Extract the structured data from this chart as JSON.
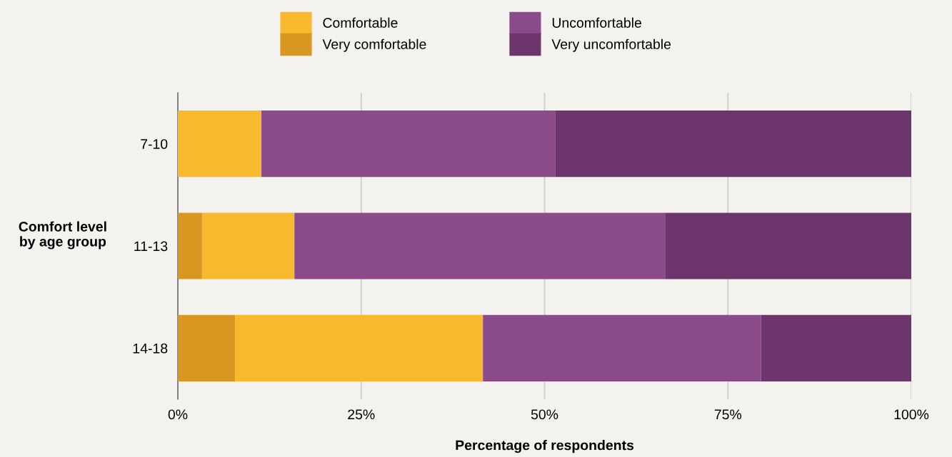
{
  "chart_data": {
    "type": "bar",
    "orientation": "horizontal",
    "stacked": true,
    "xlabel": "Percentage of respondents",
    "ylabel": "Comfort level\nby age group",
    "categories": [
      "7-10",
      "11-13",
      "14-18"
    ],
    "series": [
      {
        "name": "Very comfortable",
        "color": "#d99620",
        "values": [
          0,
          3.3,
          7.8
        ]
      },
      {
        "name": "Comfortable",
        "color": "#f9b92e",
        "values": [
          11.4,
          12.6,
          33.8
        ]
      },
      {
        "name": "Uncomfortable",
        "color": "#8b4a89",
        "values": [
          40.1,
          50.6,
          37.9
        ]
      },
      {
        "name": "Very uncomfortable",
        "color": "#6c366d",
        "values": [
          48.5,
          33.5,
          20.5
        ]
      }
    ],
    "xlim": [
      0,
      100
    ],
    "xticks": [
      {
        "value": 0,
        "label": "0%"
      },
      {
        "value": 25,
        "label": "25%"
      },
      {
        "value": 50,
        "label": "50%"
      },
      {
        "value": 75,
        "label": "75%"
      },
      {
        "value": 100,
        "label": "100%"
      }
    ],
    "grid": "x",
    "legend": "top"
  }
}
